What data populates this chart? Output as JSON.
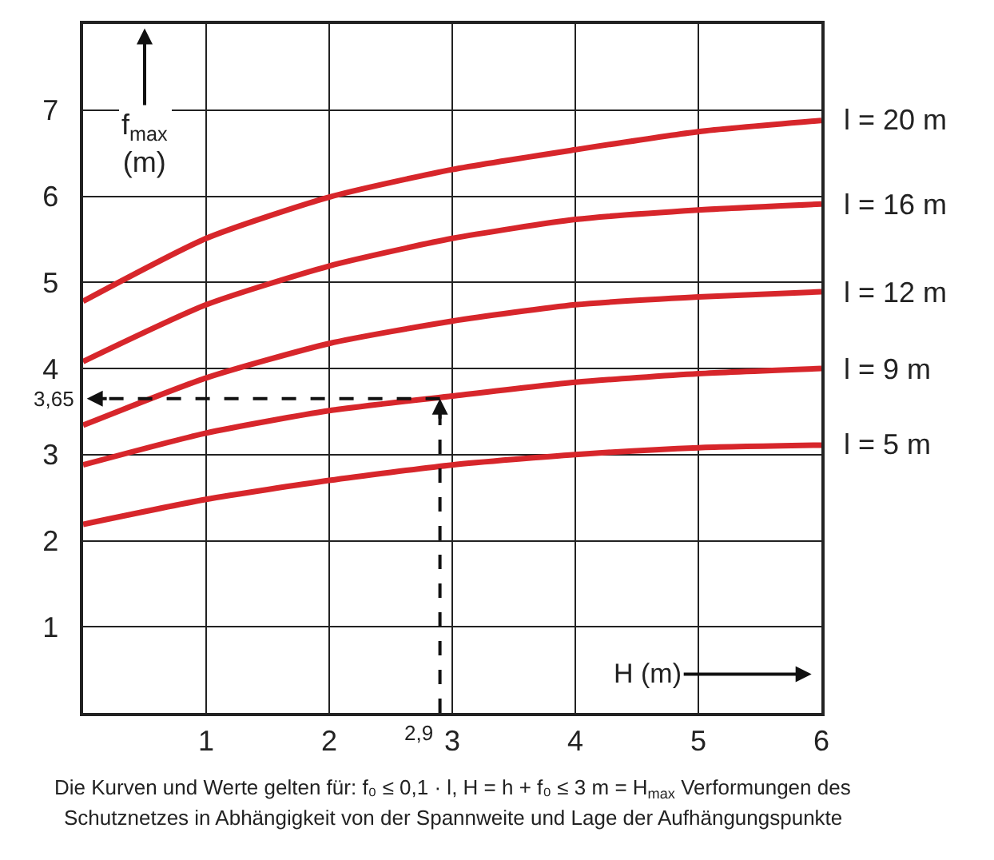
{
  "chart_data": {
    "type": "line",
    "xlabel": "H (m)",
    "ylabel": "f$_{max}$ (m)",
    "x": [
      0,
      1,
      2,
      3,
      4,
      5,
      6
    ],
    "series": [
      {
        "name": "l = 20 m",
        "color": "#d7262b",
        "values": [
          4.78,
          5.51,
          5.99,
          6.31,
          6.54,
          6.75,
          6.88
        ]
      },
      {
        "name": "l = 16 m",
        "color": "#d7262b",
        "values": [
          4.08,
          4.74,
          5.19,
          5.51,
          5.73,
          5.84,
          5.91
        ]
      },
      {
        "name": "l = 12 m",
        "color": "#d7262b",
        "values": [
          3.34,
          3.89,
          4.29,
          4.55,
          4.74,
          4.83,
          4.89
        ]
      },
      {
        "name": "l = 9 m",
        "color": "#d7262b",
        "values": [
          2.88,
          3.25,
          3.51,
          3.68,
          3.84,
          3.94,
          4.0
        ]
      },
      {
        "name": "l = 5 m",
        "color": "#d7262b",
        "values": [
          2.19,
          2.48,
          2.7,
          2.88,
          3.0,
          3.08,
          3.11
        ]
      }
    ],
    "xlim": [
      0,
      6
    ],
    "ylim": [
      0,
      8
    ],
    "xticks": [
      1,
      2,
      3,
      4,
      5,
      6
    ],
    "yticks": [
      1,
      2,
      3,
      4,
      5,
      6,
      7
    ],
    "grid": true,
    "legend": false,
    "marker": "none",
    "line_style": "solid",
    "ref_lines": [
      {
        "axis": "y",
        "value": 3.65,
        "label": "3,65",
        "line_style": "dashed",
        "color": "#111111"
      },
      {
        "axis": "x",
        "value": 2.9,
        "label": "2,9",
        "line_style": "dashed",
        "color": "#111111"
      }
    ],
    "annotations": [
      "Die Kurven und Werte gelten für: f₀ ≤ 0,1 · l, H = h + f₀ ≤ 3 m = H$_{max}$ Verformungen des",
      "Schutznetzes in Abhängigkeit von der Spannweite und Lage der Aufhängungspunkte"
    ]
  }
}
